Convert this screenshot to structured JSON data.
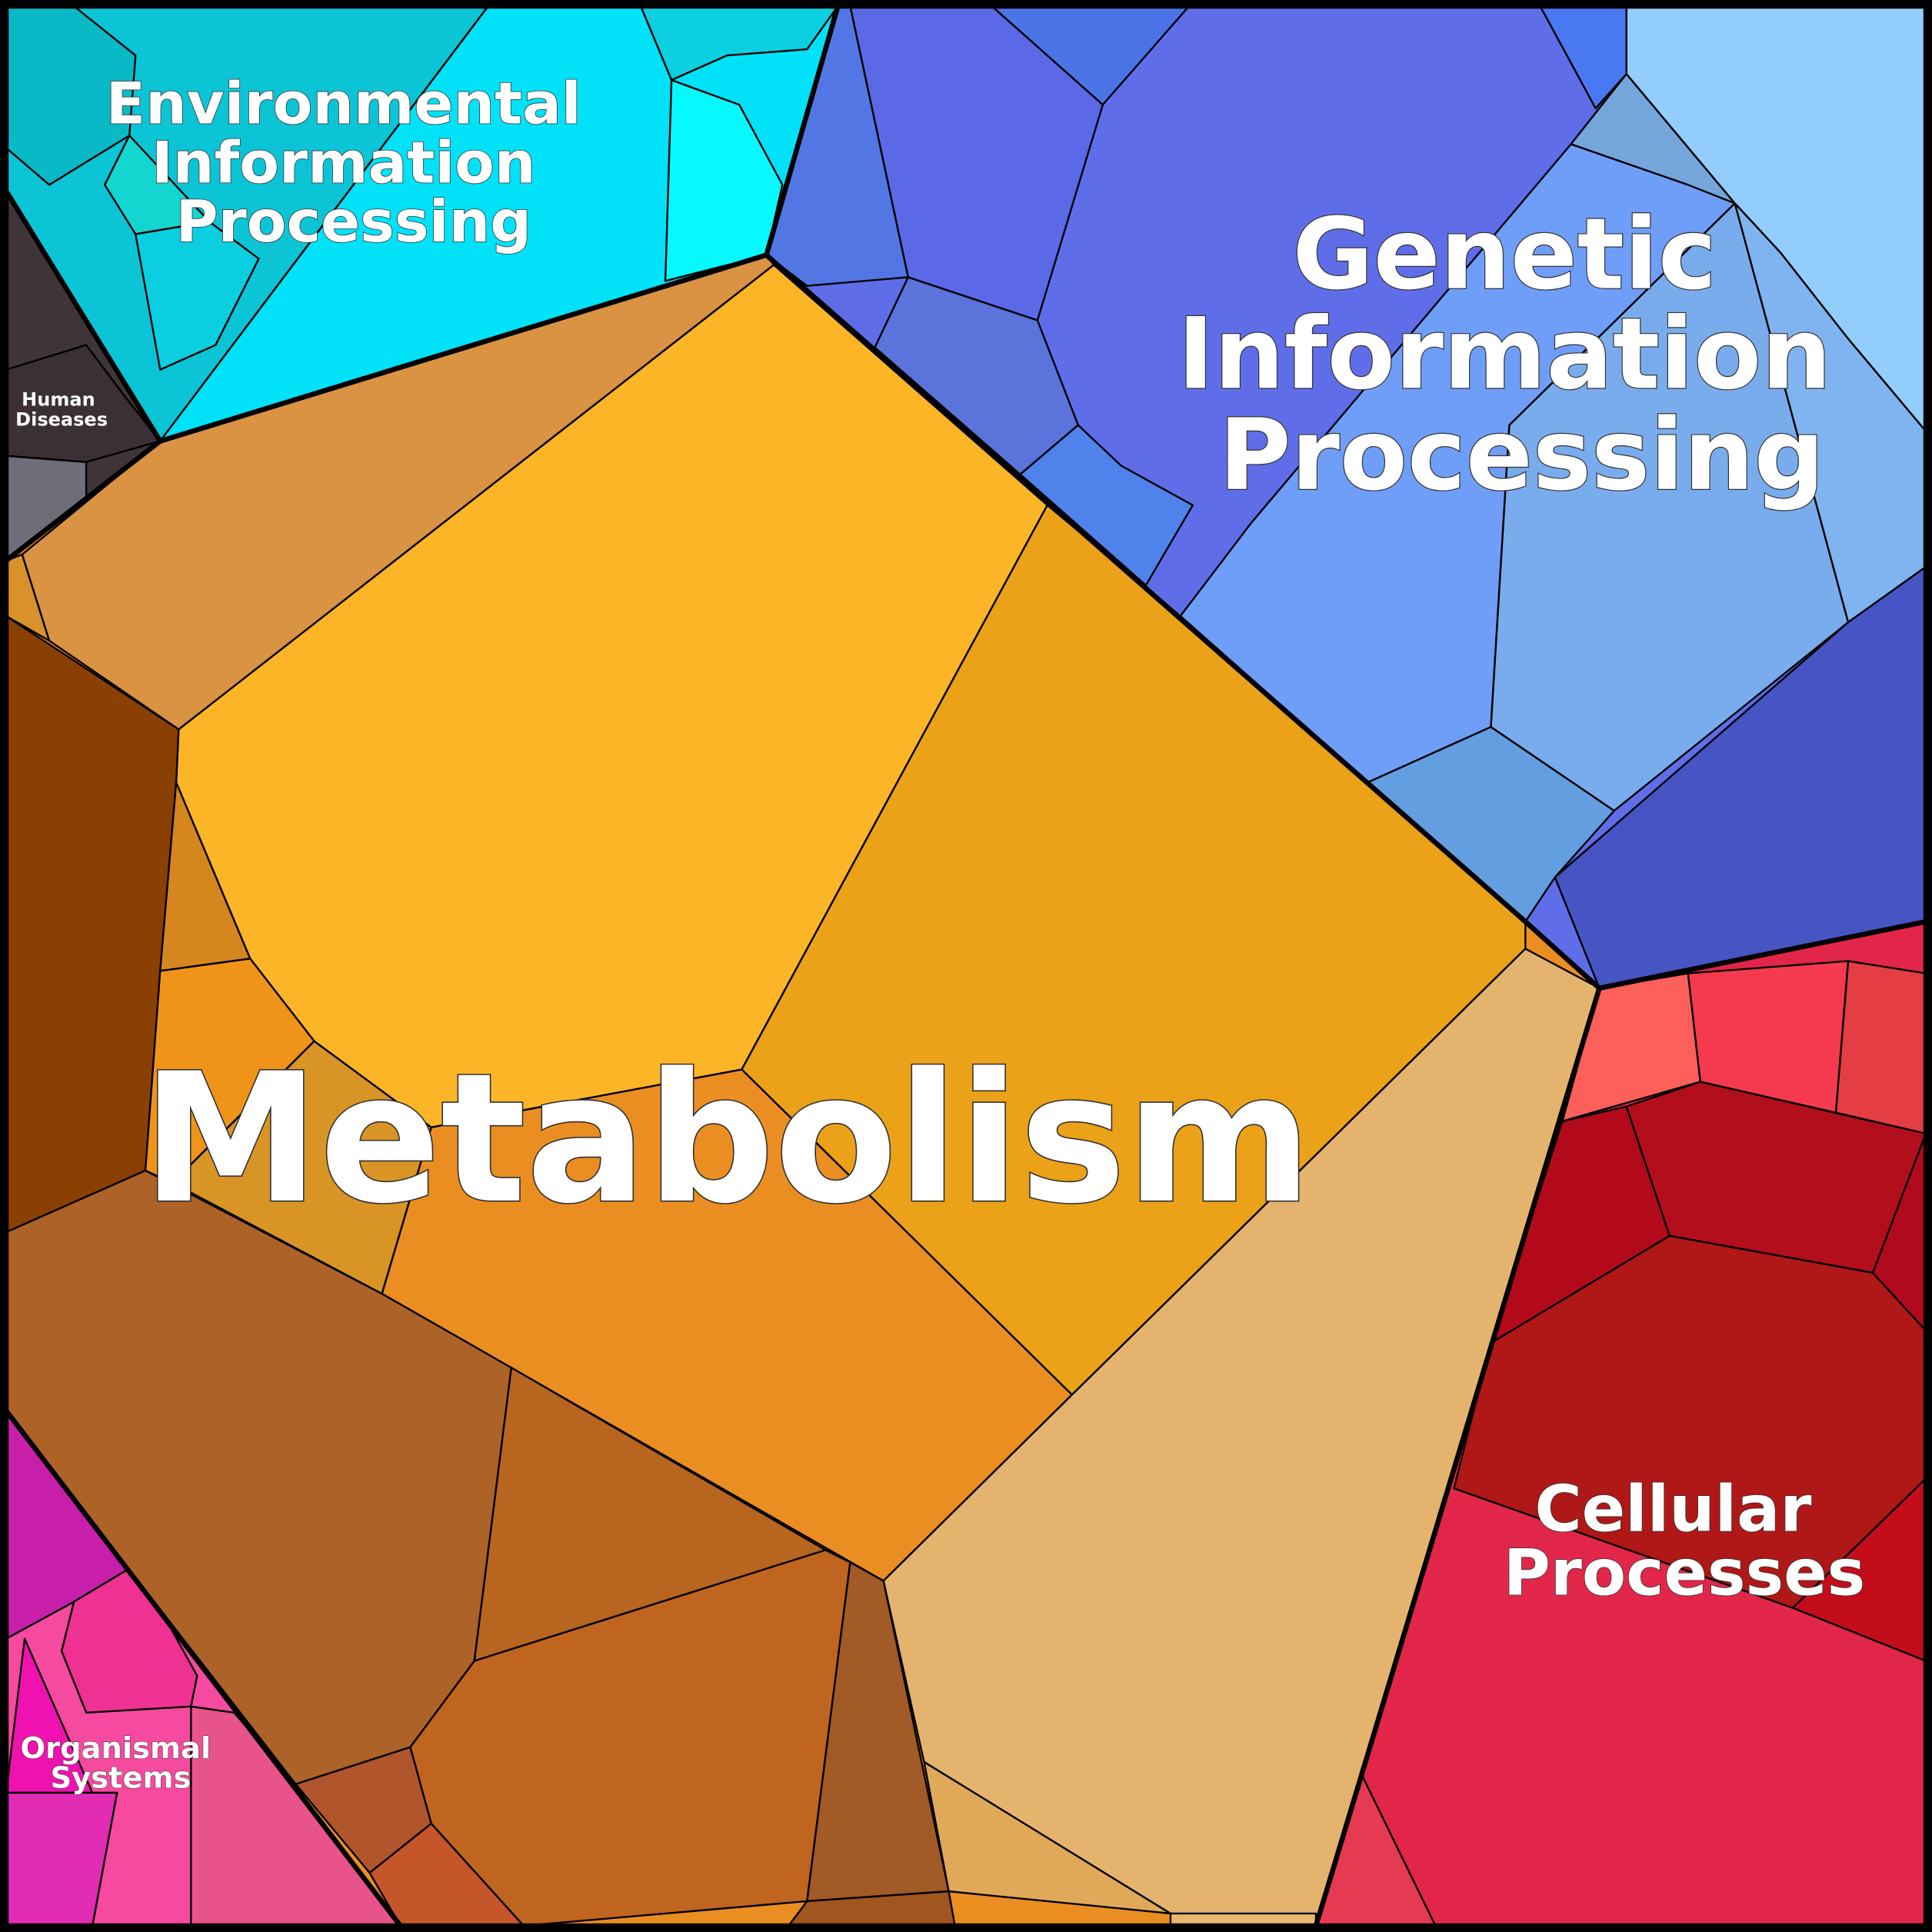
{
  "regions": [
    {
      "label": [
        "Metabolism"
      ]
    },
    {
      "label": [
        "Genetic",
        "Information",
        "Processing"
      ]
    },
    {
      "label": [
        "Environmental",
        "Information",
        "Processing"
      ]
    },
    {
      "label": [
        "Cellular",
        "Processes"
      ]
    },
    {
      "label": [
        "Organismal",
        "Systems"
      ]
    },
    {
      "label": [
        "Human",
        "Diseases"
      ]
    }
  ]
}
